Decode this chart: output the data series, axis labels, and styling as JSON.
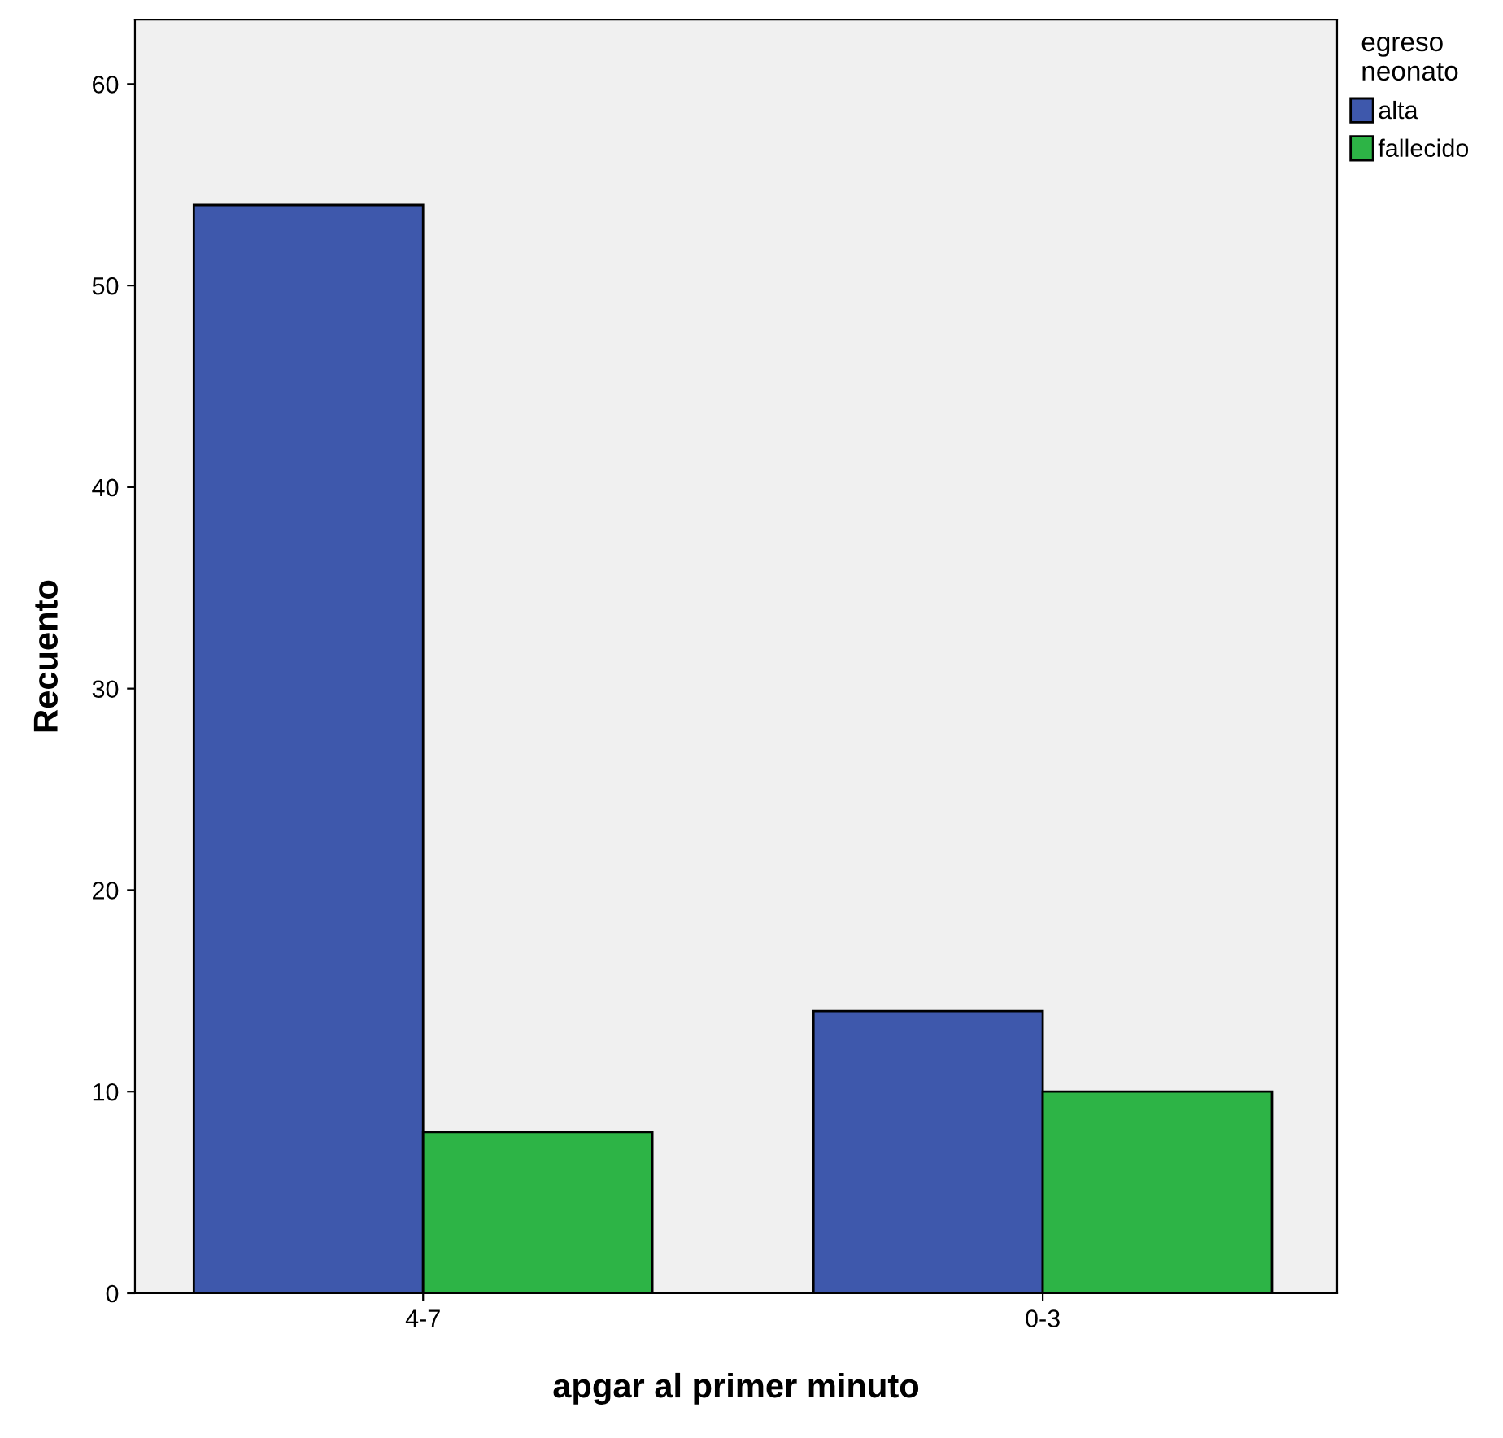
{
  "chart_data": {
    "type": "bar",
    "xlabel": "apgar al primer minuto",
    "ylabel": "Recuento",
    "legend_title": "egreso\nneonato",
    "categories": [
      "4-7",
      "0-3"
    ],
    "series": [
      {
        "name": "alta",
        "color": "#3e58ac",
        "values": [
          54,
          14
        ]
      },
      {
        "name": "fallecido",
        "color": "#2db446",
        "values": [
          8,
          10
        ]
      }
    ],
    "ylim": [
      0,
      63.2
    ],
    "yticks": [
      0,
      10,
      20,
      30,
      40,
      50,
      60
    ],
    "grid": false,
    "legend": "top right"
  }
}
